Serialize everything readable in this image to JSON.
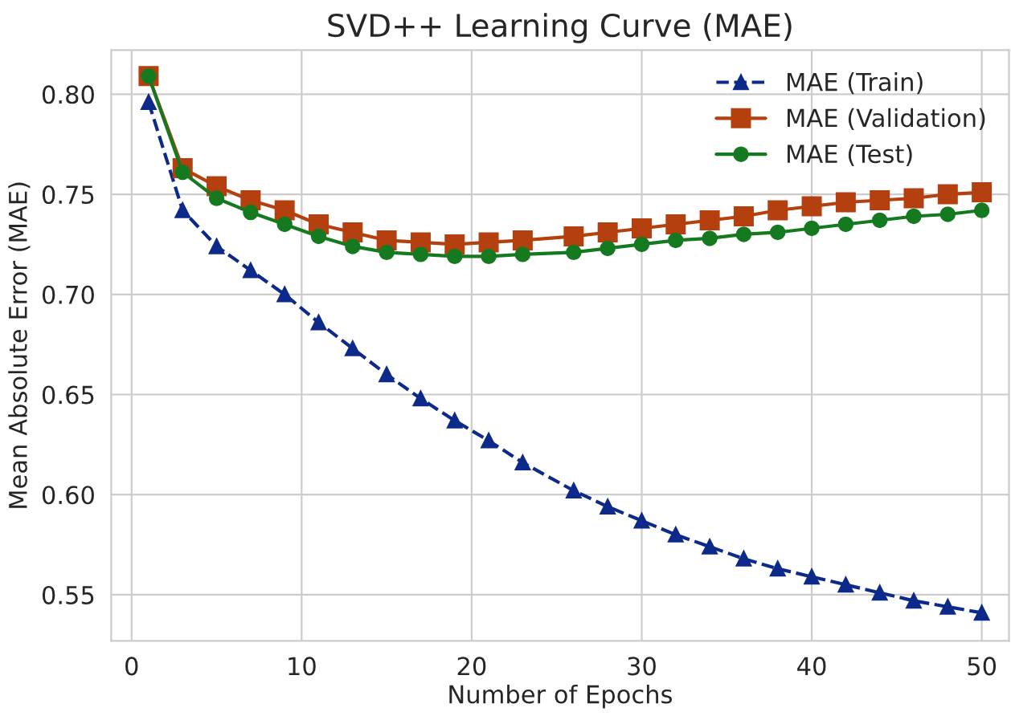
{
  "chart_data": {
    "type": "line",
    "title": "SVD++ Learning Curve (MAE)",
    "xlabel": "Number of Epochs",
    "ylabel": "Mean Absolute Error (MAE)",
    "x": [
      1,
      3,
      5,
      7,
      9,
      11,
      13,
      15,
      17,
      19,
      21,
      23,
      26,
      28,
      30,
      32,
      34,
      36,
      38,
      40,
      42,
      44,
      46,
      48,
      50
    ],
    "series": [
      {
        "name": "MAE (Train)",
        "color": "#0d2a8a",
        "marker": "triangle",
        "line_style": "dashed",
        "values": [
          0.796,
          0.742,
          0.724,
          0.712,
          0.7,
          0.686,
          0.673,
          0.66,
          0.648,
          0.637,
          0.627,
          0.616,
          0.602,
          0.594,
          0.587,
          0.58,
          0.574,
          0.568,
          0.563,
          0.559,
          0.555,
          0.551,
          0.547,
          0.544,
          0.541
        ]
      },
      {
        "name": "MAE (Validation)",
        "color": "#b5400f",
        "marker": "square",
        "line_style": "solid",
        "values": [
          0.809,
          0.763,
          0.754,
          0.747,
          0.742,
          0.735,
          0.731,
          0.727,
          0.726,
          0.725,
          0.726,
          0.727,
          0.729,
          0.731,
          0.733,
          0.735,
          0.737,
          0.739,
          0.742,
          0.744,
          0.746,
          0.747,
          0.748,
          0.75,
          0.751
        ]
      },
      {
        "name": "MAE (Test)",
        "color": "#157a1f",
        "marker": "circle",
        "line_style": "solid",
        "values": [
          0.809,
          0.761,
          0.748,
          0.741,
          0.735,
          0.729,
          0.724,
          0.721,
          0.72,
          0.719,
          0.719,
          0.72,
          0.721,
          0.723,
          0.725,
          0.727,
          0.728,
          0.73,
          0.731,
          0.733,
          0.735,
          0.737,
          0.739,
          0.74,
          0.742
        ]
      }
    ],
    "xlim": [
      -1.2,
      51.6
    ],
    "xticks": [
      0,
      10,
      20,
      30,
      40,
      50
    ],
    "ylim": [
      0.527,
      0.822
    ],
    "yticks": [
      {
        "value": 0.55,
        "label": "0.55"
      },
      {
        "value": 0.6,
        "label": "0.60"
      },
      {
        "value": 0.65,
        "label": "0.65"
      },
      {
        "value": 0.7,
        "label": "0.70"
      },
      {
        "value": 0.75,
        "label": "0.75"
      },
      {
        "value": 0.8,
        "label": "0.80"
      }
    ],
    "grid": true,
    "legend": "top right"
  }
}
